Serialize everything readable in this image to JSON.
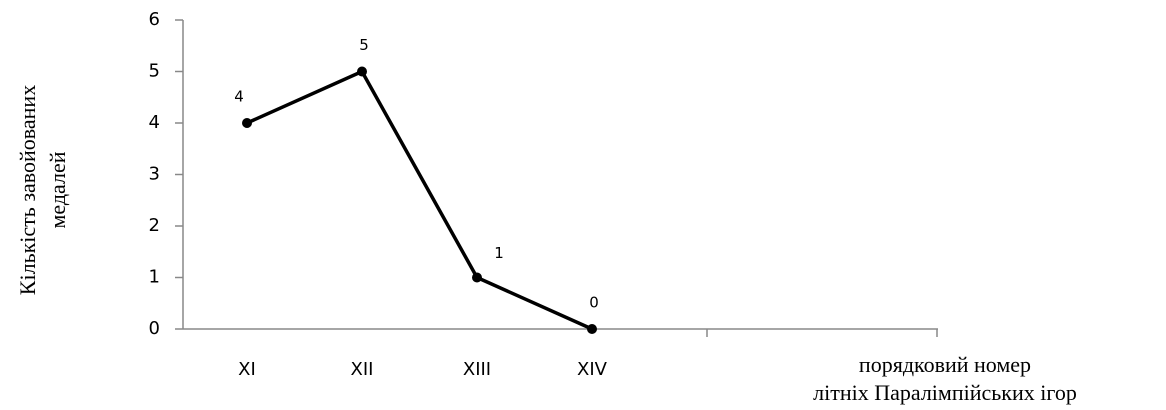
{
  "chart_data": {
    "type": "line",
    "categories": [
      "XI",
      "XII",
      "XIII",
      "XIV"
    ],
    "values": [
      4,
      5,
      1,
      0
    ],
    "color": "#000000",
    "ylim": [
      0,
      6
    ],
    "yticks": [
      0,
      1,
      2,
      3,
      4,
      5,
      6
    ],
    "ylabel": [
      "Кількість завойованих",
      "медалей"
    ],
    "xlabel": [
      "порядковий номер",
      "літніх Паралімпійських ігор"
    ],
    "grid": false
  }
}
